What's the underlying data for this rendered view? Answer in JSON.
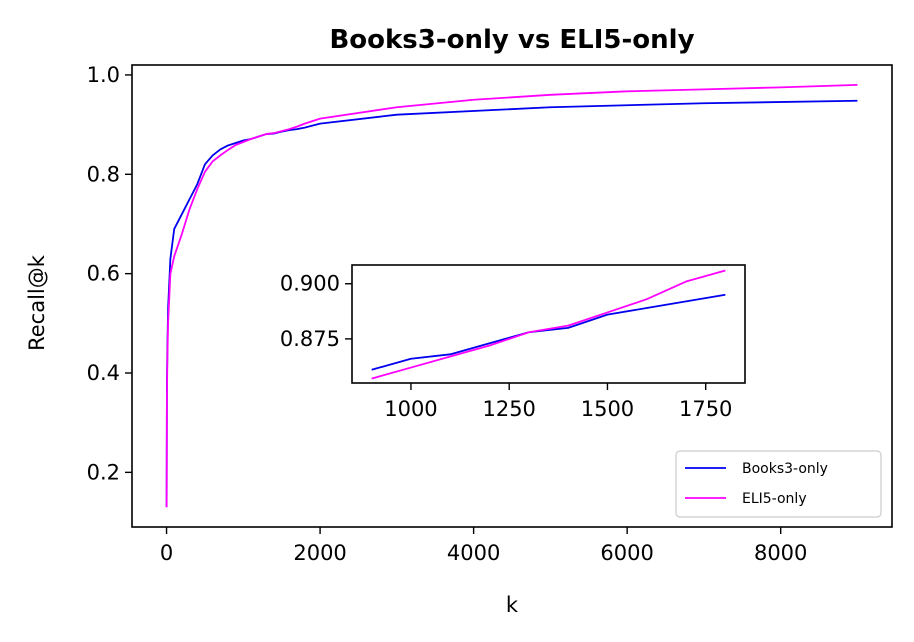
{
  "chart_data": {
    "type": "line",
    "title": "Books3-only vs ELI5-only",
    "xlabel": "k",
    "ylabel": "Recall@k",
    "xlim": [
      -450,
      9450
    ],
    "ylim": [
      0.09,
      1.02
    ],
    "xticks": [
      0,
      2000,
      4000,
      6000,
      8000
    ],
    "yticks": [
      0.2,
      0.4,
      0.6,
      0.8,
      1.0
    ],
    "legend_position": "lower-right",
    "series": [
      {
        "name": "Books3-only",
        "color": "#0000ee",
        "x": [
          1,
          5,
          10,
          20,
          50,
          100,
          200,
          300,
          400,
          500,
          600,
          700,
          800,
          900,
          1000,
          1100,
          1200,
          1300,
          1400,
          1500,
          1600,
          1700,
          1800,
          2000,
          3000,
          5000,
          7000,
          9000
        ],
        "y": [
          0.13,
          0.38,
          0.44,
          0.53,
          0.63,
          0.69,
          0.72,
          0.75,
          0.78,
          0.82,
          0.838,
          0.85,
          0.858,
          0.863,
          0.868,
          0.871,
          0.876,
          0.881,
          0.882,
          0.886,
          0.889,
          0.891,
          0.894,
          0.902,
          0.92,
          0.935,
          0.943,
          0.948
        ]
      },
      {
        "name": "ELI5-only",
        "color": "#ff00ff",
        "x": [
          1,
          5,
          10,
          20,
          50,
          100,
          200,
          300,
          400,
          500,
          600,
          700,
          800,
          900,
          1000,
          1100,
          1200,
          1300,
          1400,
          1500,
          1600,
          1700,
          1800,
          2000,
          3000,
          4000,
          5000,
          6000,
          7000,
          8000,
          9000
        ],
        "y": [
          0.13,
          0.35,
          0.42,
          0.5,
          0.6,
          0.635,
          0.68,
          0.73,
          0.77,
          0.805,
          0.826,
          0.838,
          0.849,
          0.859,
          0.865,
          0.871,
          0.876,
          0.881,
          0.883,
          0.887,
          0.891,
          0.896,
          0.902,
          0.912,
          0.935,
          0.95,
          0.96,
          0.967,
          0.971,
          0.975,
          0.98
        ]
      }
    ],
    "inset": {
      "xlim": [
        850,
        1850
      ],
      "ylim": [
        0.855,
        0.9085
      ],
      "xticks": [
        1000,
        1250,
        1500,
        1750
      ],
      "yticks": [
        0.875,
        0.9
      ],
      "series": [
        {
          "name": "Books3-only",
          "color": "#0000ee",
          "x": [
            900,
            1000,
            1100,
            1200,
            1300,
            1400,
            1500,
            1600,
            1700,
            1800
          ],
          "y": [
            0.861,
            0.866,
            0.868,
            0.873,
            0.878,
            0.88,
            0.886,
            0.889,
            0.892,
            0.895
          ]
        },
        {
          "name": "ELI5-only",
          "color": "#ff00ff",
          "x": [
            900,
            1000,
            1100,
            1200,
            1300,
            1400,
            1500,
            1600,
            1700,
            1800
          ],
          "y": [
            0.857,
            0.862,
            0.867,
            0.872,
            0.878,
            0.881,
            0.887,
            0.893,
            0.901,
            0.906
          ]
        }
      ]
    }
  }
}
